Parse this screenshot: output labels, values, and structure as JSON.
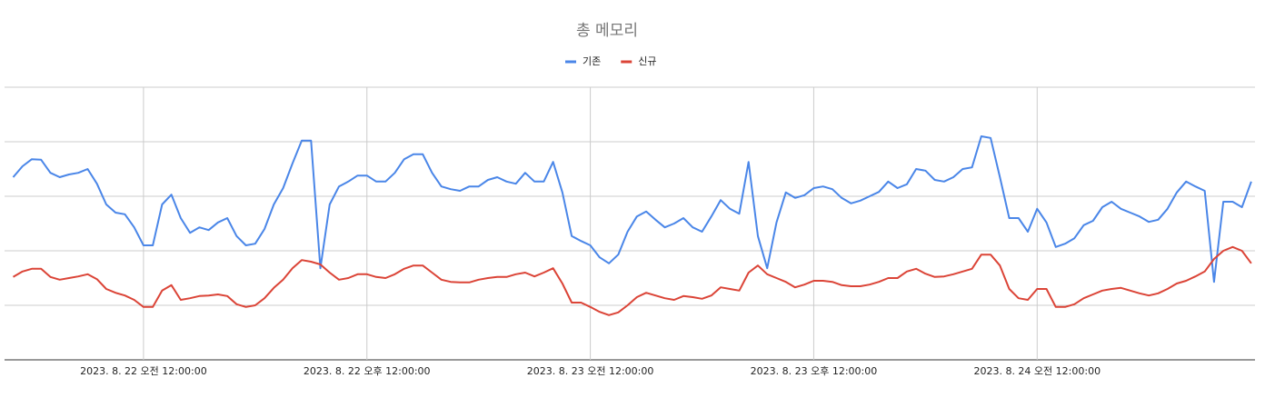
{
  "chart_data": {
    "type": "line",
    "title": "총 메모리",
    "grid": true,
    "legend": "top",
    "ylim": [
      0,
      5
    ],
    "yticks": [
      0,
      1,
      2,
      3,
      4,
      5
    ],
    "xlim": [
      "2023-08-21 16:30",
      "2023-08-24 11:45"
    ],
    "xticks": [
      {
        "value": "2023-08-22 00:00",
        "label": "2023. 8. 22 오전 12:00:00"
      },
      {
        "value": "2023-08-22 12:00",
        "label": "2023. 8. 22 오후 12:00:00"
      },
      {
        "value": "2023-08-23 00:00",
        "label": "2023. 8. 23 오전 12:00:00"
      },
      {
        "value": "2023-08-23 12:00",
        "label": "2023. 8. 23 오후 12:00:00"
      },
      {
        "value": "2023-08-24 00:00",
        "label": "2023. 8. 24 오전 12:00:00"
      }
    ],
    "x": [
      "2023-08-21 17:00",
      "2023-08-21 17:30",
      "2023-08-21 18:00",
      "2023-08-21 18:30",
      "2023-08-21 19:00",
      "2023-08-21 19:30",
      "2023-08-21 20:00",
      "2023-08-21 20:30",
      "2023-08-21 21:00",
      "2023-08-21 21:30",
      "2023-08-21 22:00",
      "2023-08-21 22:30",
      "2023-08-21 23:00",
      "2023-08-21 23:30",
      "2023-08-22 00:00",
      "2023-08-22 00:30",
      "2023-08-22 01:00",
      "2023-08-22 01:30",
      "2023-08-22 02:00",
      "2023-08-22 02:30",
      "2023-08-22 03:00",
      "2023-08-22 03:30",
      "2023-08-22 04:00",
      "2023-08-22 04:30",
      "2023-08-22 05:00",
      "2023-08-22 05:30",
      "2023-08-22 06:00",
      "2023-08-22 06:30",
      "2023-08-22 07:00",
      "2023-08-22 07:30",
      "2023-08-22 08:00",
      "2023-08-22 08:30",
      "2023-08-22 09:00",
      "2023-08-22 09:30",
      "2023-08-22 10:00",
      "2023-08-22 10:30",
      "2023-08-22 11:00",
      "2023-08-22 11:30",
      "2023-08-22 12:00",
      "2023-08-22 12:30",
      "2023-08-22 13:00",
      "2023-08-22 13:30",
      "2023-08-22 14:00",
      "2023-08-22 14:30",
      "2023-08-22 15:00",
      "2023-08-22 15:30",
      "2023-08-22 16:00",
      "2023-08-22 16:30",
      "2023-08-22 17:00",
      "2023-08-22 17:30",
      "2023-08-22 18:00",
      "2023-08-22 18:30",
      "2023-08-22 19:00",
      "2023-08-22 19:30",
      "2023-08-22 20:00",
      "2023-08-22 20:30",
      "2023-08-22 21:00",
      "2023-08-22 21:30",
      "2023-08-22 22:00",
      "2023-08-22 22:30",
      "2023-08-22 23:00",
      "2023-08-22 23:30",
      "2023-08-23 00:00",
      "2023-08-23 00:30",
      "2023-08-23 01:00",
      "2023-08-23 01:30",
      "2023-08-23 02:00",
      "2023-08-23 02:30",
      "2023-08-23 03:00",
      "2023-08-23 03:30",
      "2023-08-23 04:00",
      "2023-08-23 04:30",
      "2023-08-23 05:00",
      "2023-08-23 05:30",
      "2023-08-23 06:00",
      "2023-08-23 06:30",
      "2023-08-23 07:00",
      "2023-08-23 07:30",
      "2023-08-23 08:00",
      "2023-08-23 08:30",
      "2023-08-23 09:00",
      "2023-08-23 09:30",
      "2023-08-23 10:00",
      "2023-08-23 10:30",
      "2023-08-23 11:00",
      "2023-08-23 11:30",
      "2023-08-23 12:00",
      "2023-08-23 12:30",
      "2023-08-23 13:00",
      "2023-08-23 13:30",
      "2023-08-23 14:00",
      "2023-08-23 14:30",
      "2023-08-23 15:00",
      "2023-08-23 15:30",
      "2023-08-23 16:00",
      "2023-08-23 16:30",
      "2023-08-23 17:00",
      "2023-08-23 17:30",
      "2023-08-23 18:00",
      "2023-08-23 18:30",
      "2023-08-23 19:00",
      "2023-08-23 19:30",
      "2023-08-23 20:00",
      "2023-08-23 20:30",
      "2023-08-23 21:00",
      "2023-08-23 21:30",
      "2023-08-23 22:00",
      "2023-08-23 22:30",
      "2023-08-23 23:00",
      "2023-08-23 23:30",
      "2023-08-24 00:00",
      "2023-08-24 00:30",
      "2023-08-24 01:00",
      "2023-08-24 01:30",
      "2023-08-24 02:00",
      "2023-08-24 02:30",
      "2023-08-24 03:00",
      "2023-08-24 03:30",
      "2023-08-24 04:00",
      "2023-08-24 04:30",
      "2023-08-24 05:00",
      "2023-08-24 05:30",
      "2023-08-24 06:00",
      "2023-08-24 06:30",
      "2023-08-24 07:00",
      "2023-08-24 07:30",
      "2023-08-24 08:00",
      "2023-08-24 08:30",
      "2023-08-24 09:00",
      "2023-08-24 09:30",
      "2023-08-24 10:00",
      "2023-08-24 10:30",
      "2023-08-24 11:00",
      "2023-08-24 11:30"
    ],
    "series": [
      {
        "name": "기존",
        "color": "#4a86e8",
        "values": [
          3.35,
          3.55,
          3.68,
          3.67,
          3.43,
          3.35,
          3.4,
          3.43,
          3.5,
          3.23,
          2.85,
          2.7,
          2.67,
          2.43,
          2.1,
          2.1,
          2.85,
          3.03,
          2.6,
          2.33,
          2.43,
          2.38,
          2.52,
          2.6,
          2.27,
          2.1,
          2.13,
          2.4,
          2.85,
          3.15,
          3.6,
          4.02,
          4.02,
          1.68,
          2.85,
          3.18,
          3.27,
          3.38,
          3.38,
          3.27,
          3.27,
          3.43,
          3.68,
          3.77,
          3.77,
          3.43,
          3.18,
          3.13,
          3.1,
          3.18,
          3.18,
          3.3,
          3.35,
          3.27,
          3.23,
          3.43,
          3.27,
          3.27,
          3.63,
          3.07,
          2.27,
          2.18,
          2.1,
          1.88,
          1.77,
          1.93,
          2.35,
          2.63,
          2.72,
          2.57,
          2.43,
          2.5,
          2.6,
          2.43,
          2.35,
          2.63,
          2.93,
          2.77,
          2.68,
          3.63,
          2.27,
          1.68,
          2.52,
          3.07,
          2.97,
          3.02,
          3.15,
          3.18,
          3.13,
          2.97,
          2.87,
          2.92,
          3.0,
          3.08,
          3.27,
          3.15,
          3.22,
          3.5,
          3.47,
          3.3,
          3.27,
          3.35,
          3.5,
          3.53,
          4.1,
          4.07,
          3.35,
          2.6,
          2.6,
          2.35,
          2.77,
          2.52,
          2.07,
          2.13,
          2.23,
          2.47,
          2.55,
          2.8,
          2.9,
          2.77,
          2.7,
          2.63,
          2.53,
          2.57,
          2.77,
          3.07,
          3.27,
          3.18,
          3.1,
          1.43,
          2.9,
          2.9,
          2.8,
          3.27
        ]
      },
      {
        "name": "신규",
        "color": "#db4437",
        "values": [
          1.52,
          1.62,
          1.67,
          1.67,
          1.52,
          1.47,
          1.5,
          1.53,
          1.57,
          1.48,
          1.3,
          1.23,
          1.18,
          1.1,
          0.97,
          0.97,
          1.27,
          1.37,
          1.1,
          1.13,
          1.17,
          1.18,
          1.2,
          1.17,
          1.02,
          0.97,
          1.0,
          1.13,
          1.32,
          1.47,
          1.68,
          1.83,
          1.8,
          1.75,
          1.6,
          1.47,
          1.5,
          1.57,
          1.57,
          1.52,
          1.5,
          1.57,
          1.67,
          1.73,
          1.73,
          1.6,
          1.47,
          1.43,
          1.42,
          1.42,
          1.47,
          1.5,
          1.52,
          1.52,
          1.57,
          1.6,
          1.53,
          1.6,
          1.68,
          1.4,
          1.05,
          1.05,
          0.97,
          0.88,
          0.82,
          0.87,
          1.0,
          1.15,
          1.23,
          1.18,
          1.13,
          1.1,
          1.17,
          1.15,
          1.12,
          1.18,
          1.33,
          1.3,
          1.27,
          1.6,
          1.73,
          1.57,
          1.5,
          1.43,
          1.33,
          1.38,
          1.45,
          1.45,
          1.43,
          1.37,
          1.35,
          1.35,
          1.38,
          1.43,
          1.5,
          1.5,
          1.62,
          1.67,
          1.58,
          1.52,
          1.53,
          1.57,
          1.62,
          1.67,
          1.93,
          1.93,
          1.73,
          1.3,
          1.13,
          1.1,
          1.3,
          1.3,
          0.97,
          0.97,
          1.02,
          1.13,
          1.2,
          1.27,
          1.3,
          1.32,
          1.27,
          1.22,
          1.18,
          1.22,
          1.3,
          1.4,
          1.45,
          1.53,
          1.62,
          1.85,
          2.0,
          2.07,
          2.0,
          1.77
        ]
      }
    ]
  }
}
